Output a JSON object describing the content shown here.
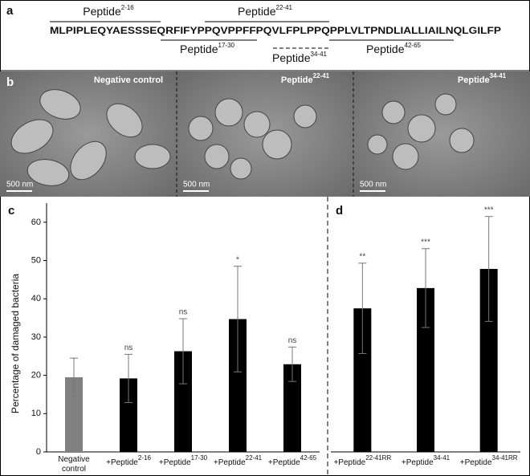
{
  "panel_a": {
    "label": "a",
    "sequence": "MLPIPLEQYAESSSEQRFIFYPPQVPPFFPQVLFPLPPQPPLVLTPNDLIALLIAILNQLGILFP",
    "peptides": [
      {
        "text": "Peptide",
        "sup": "2-16"
      },
      {
        "text": "Peptide",
        "sup": "22-41"
      },
      {
        "text": "Peptide",
        "sup": "17-30"
      },
      {
        "text": "Peptide",
        "sup": "34-41"
      },
      {
        "text": "Peptide",
        "sup": "42-65"
      }
    ]
  },
  "panel_b": {
    "label": "b",
    "images": [
      {
        "title": "Negative control"
      },
      {
        "title": "Peptide",
        "sup": "22-41"
      },
      {
        "title": "Peptide",
        "sup": "34-41"
      }
    ],
    "scale_bar": "500 nm"
  },
  "chart_data": [
    {
      "type": "bar",
      "panel_label": "c",
      "y_label": "Percentage of damaged bacteria",
      "categories": [
        {
          "label": "Negative control"
        },
        {
          "label": "+Peptide",
          "sup": "2-16"
        },
        {
          "label": "+Peptide",
          "sup": "17-30"
        },
        {
          "label": "+Peptide",
          "sup": "22-41"
        },
        {
          "label": "+Peptide",
          "sup": "42-65"
        }
      ],
      "values": [
        19.5,
        19.2,
        26.3,
        34.7,
        22.9
      ],
      "errors": [
        5,
        6.3,
        8.5,
        13.8,
        4.5
      ],
      "annotations": [
        null,
        "ns",
        "ns",
        "*",
        "ns"
      ],
      "colors": [
        "#808080",
        "#000000",
        "#000000",
        "#000000",
        "#000000"
      ],
      "ylim": [
        0,
        65
      ],
      "yticks": [
        0,
        10,
        20,
        30,
        40,
        50,
        60
      ]
    },
    {
      "type": "bar",
      "panel_label": "d",
      "categories": [
        {
          "label": "+Peptide",
          "sup": "22-41RR"
        },
        {
          "label": "+Peptide",
          "sup": "34-41"
        },
        {
          "label": "+Peptide",
          "sup": "34-41RR"
        }
      ],
      "values": [
        37.5,
        42.8,
        47.8
      ],
      "errors": [
        11.8,
        10.3,
        13.7
      ],
      "annotations": [
        "**",
        "***",
        "***"
      ],
      "colors": [
        "#000000",
        "#000000",
        "#000000"
      ],
      "ylim": [
        0,
        65
      ]
    }
  ]
}
